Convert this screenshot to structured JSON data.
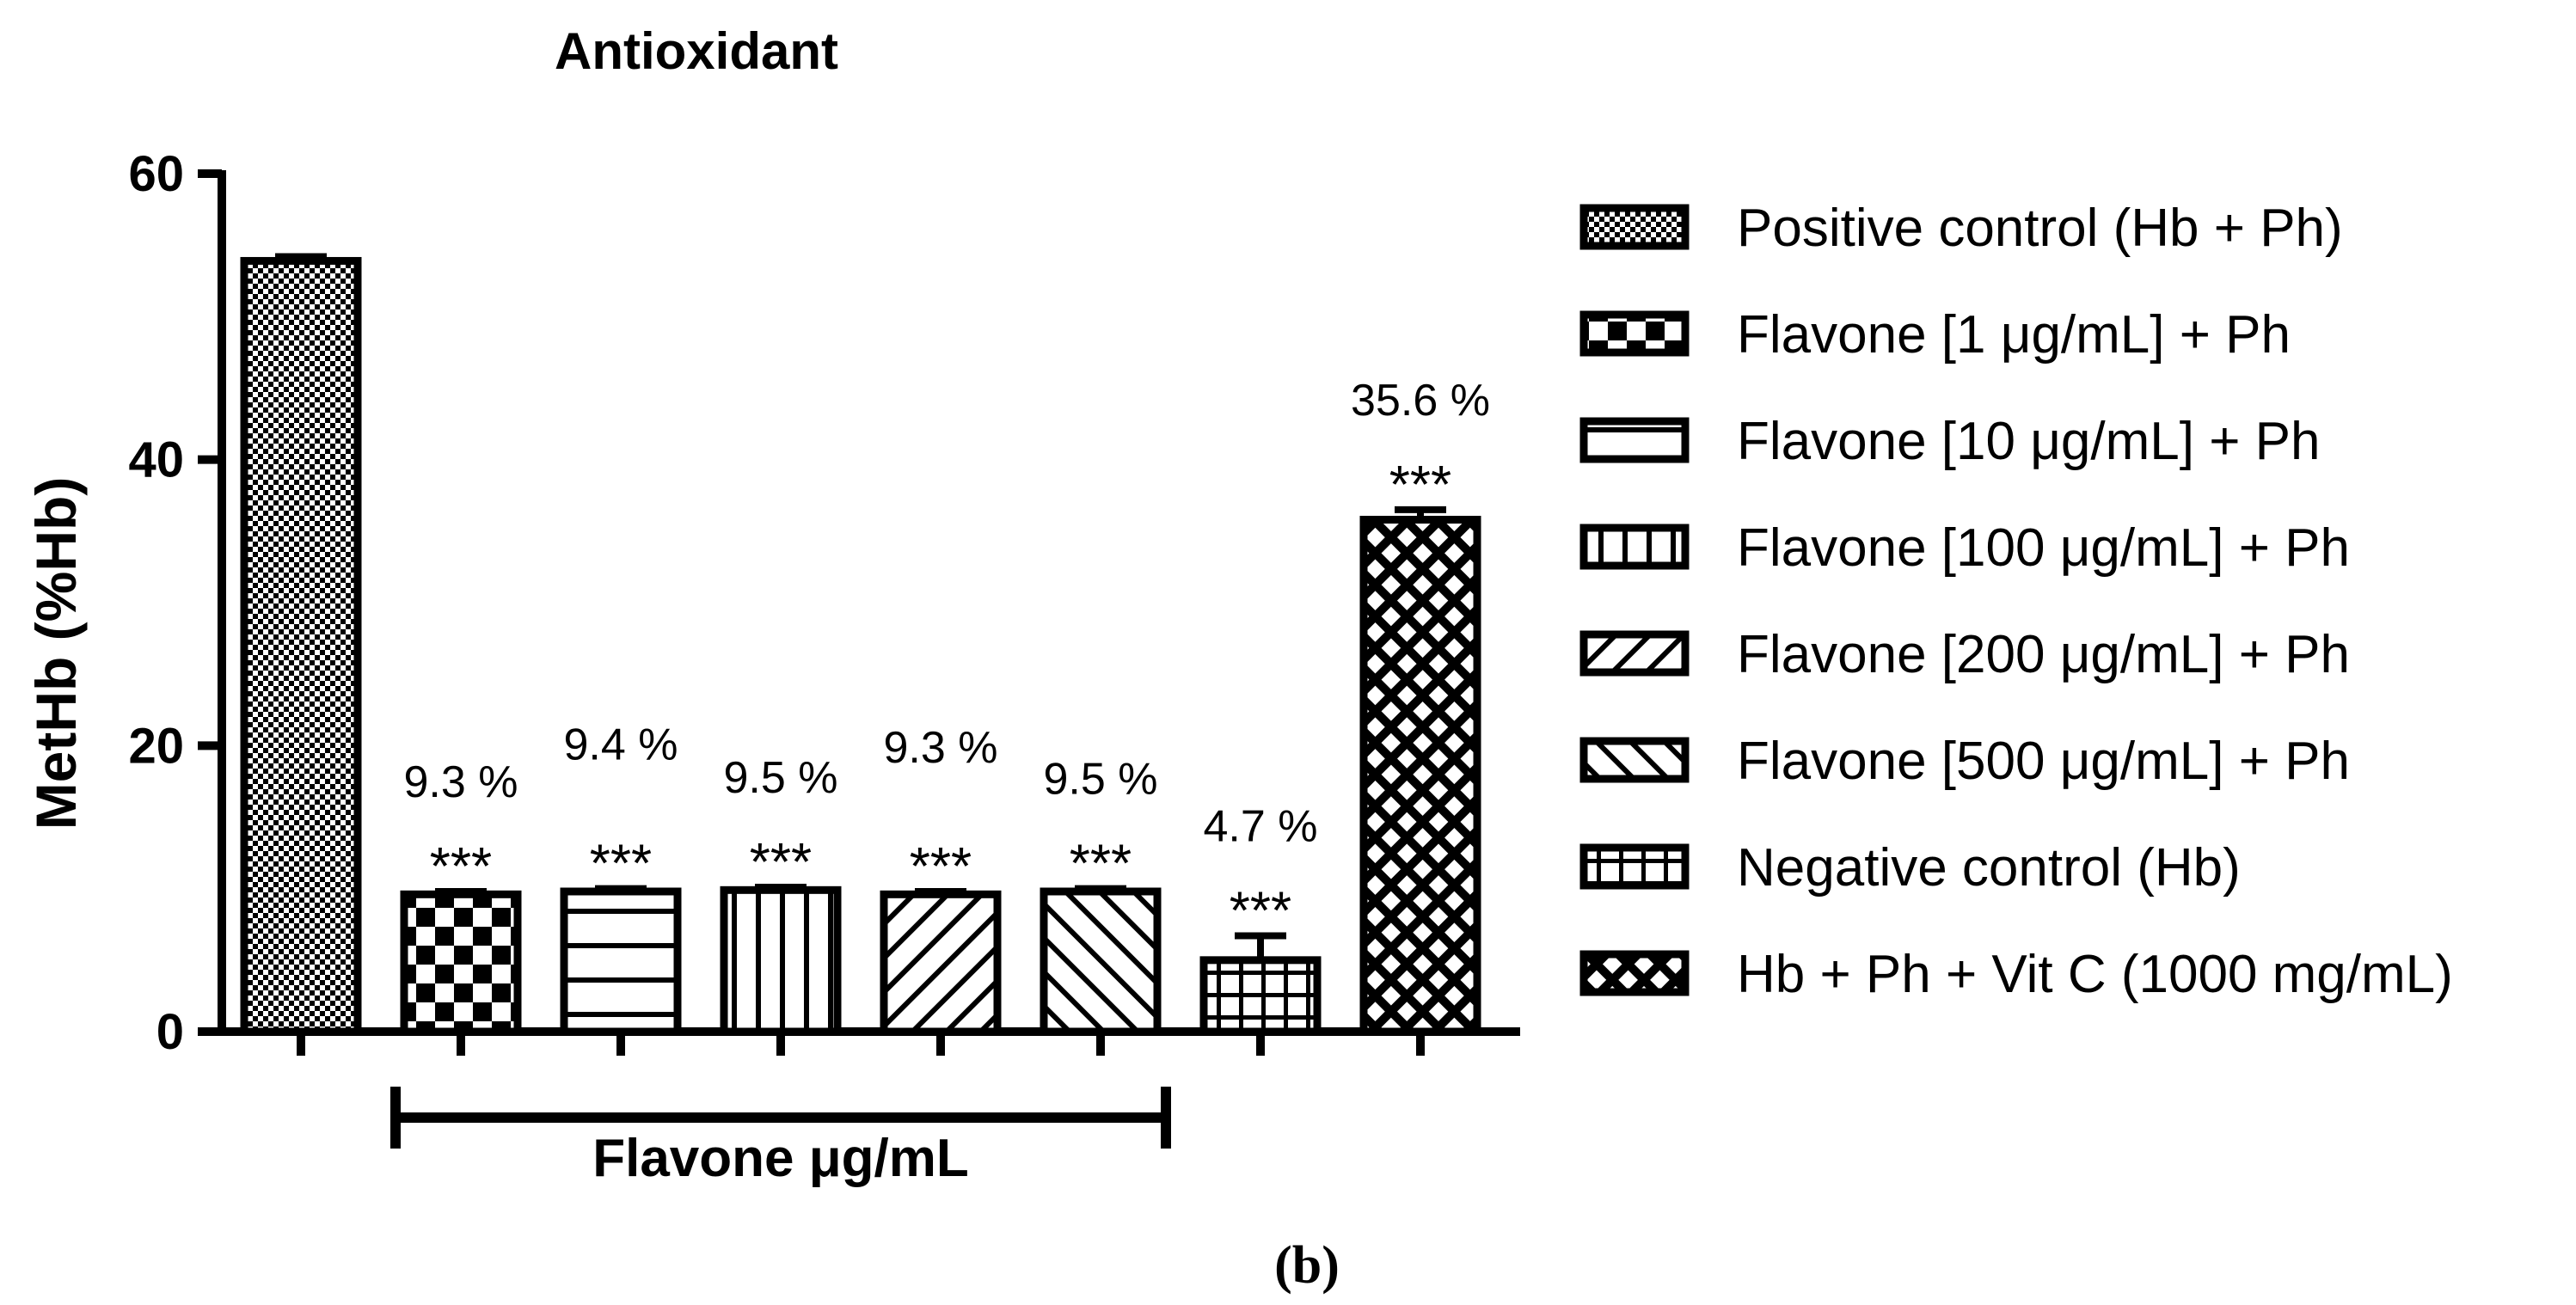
{
  "chart_data": {
    "type": "bar",
    "title": "Antioxidant",
    "ylabel": "MetHb (%Hb)",
    "xlabel": "",
    "ylim": [
      0,
      60
    ],
    "yticks": [
      0,
      20,
      40,
      60
    ],
    "grid": false,
    "legend_position": "right",
    "panel_label": "(b)",
    "group_bracket": {
      "label": "Flavone μg/mL",
      "from_index": 1,
      "to_index": 5
    },
    "categories": [
      "Positive control (Hb + Ph)",
      "Flavone [1 μg/mL] + Ph",
      "Flavone [10 μg/mL] + Ph",
      "Flavone [100 μg/mL] + Ph",
      "Flavone [200 μg/mL] + Ph",
      "Flavone [500 μg/mL] + Ph",
      "Negative control (Hb)",
      "Hb + Ph + Vit C (1000 mg/mL)"
    ],
    "values": [
      53.9,
      9.6,
      9.8,
      9.9,
      9.6,
      9.8,
      5.0,
      35.8
    ],
    "errors": [
      0.3,
      0.2,
      0.2,
      0.2,
      0.2,
      0.2,
      1.7,
      0.7
    ],
    "patterns": [
      "dots",
      "checker",
      "hlines",
      "vlines",
      "diag-right",
      "diag-left",
      "grid",
      "crosshatch"
    ],
    "percent_labels": [
      "",
      "9.3 %",
      "9.4 %",
      "9.5 %",
      "9.3 %",
      "9.5 %",
      "4.7 %",
      "35.6 %"
    ],
    "significance": [
      "",
      "***",
      "***",
      "***",
      "***",
      "***",
      "***",
      "***"
    ]
  },
  "colors": {
    "ink": "#000000",
    "background": "#ffffff"
  }
}
